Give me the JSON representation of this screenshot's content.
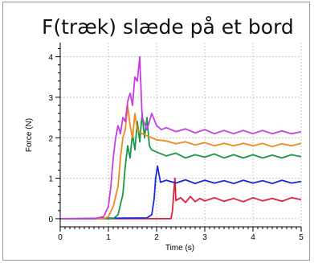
{
  "chart_data": {
    "type": "line",
    "title": "F(træk) slæde på et bord",
    "xlabel": "Time (s)",
    "ylabel": "Force (N)",
    "xlim": [
      0,
      5
    ],
    "ylim": [
      -0.2,
      4.35
    ],
    "x_ticks": [
      0,
      1,
      2,
      3,
      4,
      5
    ],
    "y_ticks": [
      0,
      1,
      2,
      3,
      4
    ],
    "grid": true,
    "series": [
      {
        "color": "#e0203a",
        "points": [
          [
            0,
            0.0
          ],
          [
            2.3,
            0.0
          ],
          [
            2.33,
            0.2
          ],
          [
            2.36,
            0.7
          ],
          [
            2.38,
            1.0
          ],
          [
            2.4,
            0.45
          ],
          [
            2.5,
            0.52
          ],
          [
            2.6,
            0.4
          ],
          [
            2.7,
            0.55
          ],
          [
            2.8,
            0.42
          ],
          [
            2.9,
            0.5
          ],
          [
            3.0,
            0.44
          ],
          [
            3.2,
            0.52
          ],
          [
            3.4,
            0.43
          ],
          [
            3.6,
            0.5
          ],
          [
            3.8,
            0.42
          ],
          [
            4.0,
            0.52
          ],
          [
            4.2,
            0.44
          ],
          [
            4.4,
            0.5
          ],
          [
            4.6,
            0.43
          ],
          [
            4.8,
            0.52
          ],
          [
            5.0,
            0.47
          ]
        ]
      },
      {
        "color": "#1a2bd8",
        "points": [
          [
            0,
            0.0
          ],
          [
            1.8,
            0.02
          ],
          [
            1.9,
            0.1
          ],
          [
            1.95,
            0.5
          ],
          [
            1.98,
            1.0
          ],
          [
            2.02,
            1.3
          ],
          [
            2.08,
            0.9
          ],
          [
            2.2,
            0.95
          ],
          [
            2.4,
            0.88
          ],
          [
            2.6,
            0.96
          ],
          [
            2.8,
            0.87
          ],
          [
            3.0,
            0.95
          ],
          [
            3.2,
            0.88
          ],
          [
            3.4,
            0.94
          ],
          [
            3.6,
            0.87
          ],
          [
            3.8,
            0.95
          ],
          [
            4.0,
            0.88
          ],
          [
            4.2,
            0.94
          ],
          [
            4.4,
            0.87
          ],
          [
            4.6,
            0.95
          ],
          [
            4.8,
            0.88
          ],
          [
            5.0,
            0.92
          ]
        ]
      },
      {
        "color": "#1a9648",
        "points": [
          [
            0,
            0.0
          ],
          [
            1.1,
            0.0
          ],
          [
            1.2,
            0.1
          ],
          [
            1.3,
            0.6
          ],
          [
            1.35,
            1.3
          ],
          [
            1.4,
            1.8
          ],
          [
            1.45,
            1.5
          ],
          [
            1.5,
            2.1
          ],
          [
            1.55,
            1.7
          ],
          [
            1.6,
            2.4
          ],
          [
            1.65,
            1.9
          ],
          [
            1.7,
            2.6
          ],
          [
            1.75,
            2.0
          ],
          [
            1.8,
            2.5
          ],
          [
            1.85,
            1.8
          ],
          [
            1.9,
            1.7
          ],
          [
            2.0,
            1.65
          ],
          [
            2.2,
            1.55
          ],
          [
            2.4,
            1.62
          ],
          [
            2.6,
            1.5
          ],
          [
            2.8,
            1.58
          ],
          [
            3.0,
            1.52
          ],
          [
            3.2,
            1.6
          ],
          [
            3.4,
            1.5
          ],
          [
            3.6,
            1.58
          ],
          [
            3.8,
            1.5
          ],
          [
            4.0,
            1.58
          ],
          [
            4.2,
            1.5
          ],
          [
            4.4,
            1.57
          ],
          [
            4.6,
            1.5
          ],
          [
            4.8,
            1.58
          ],
          [
            5.0,
            1.53
          ]
        ]
      },
      {
        "color": "#f08a1c",
        "points": [
          [
            0,
            0.0
          ],
          [
            0.9,
            0.0
          ],
          [
            1.0,
            0.05
          ],
          [
            1.1,
            0.3
          ],
          [
            1.2,
            0.8
          ],
          [
            1.25,
            1.5
          ],
          [
            1.3,
            2.0
          ],
          [
            1.35,
            2.2
          ],
          [
            1.4,
            2.8
          ],
          [
            1.45,
            2.3
          ],
          [
            1.5,
            2.0
          ],
          [
            1.55,
            2.6
          ],
          [
            1.6,
            2.2
          ],
          [
            1.7,
            2.1
          ],
          [
            1.8,
            2.05
          ],
          [
            2.0,
            1.95
          ],
          [
            2.2,
            1.92
          ],
          [
            2.4,
            1.85
          ],
          [
            2.6,
            1.9
          ],
          [
            2.8,
            1.82
          ],
          [
            3.0,
            1.88
          ],
          [
            3.2,
            1.8
          ],
          [
            3.4,
            1.86
          ],
          [
            3.6,
            1.8
          ],
          [
            3.8,
            1.86
          ],
          [
            4.0,
            1.8
          ],
          [
            4.2,
            1.86
          ],
          [
            4.4,
            1.78
          ],
          [
            4.6,
            1.85
          ],
          [
            4.8,
            1.8
          ],
          [
            5.0,
            1.86
          ]
        ]
      },
      {
        "color": "#c83ce8",
        "points": [
          [
            0,
            0.0
          ],
          [
            0.7,
            0.0
          ],
          [
            0.9,
            0.05
          ],
          [
            1.0,
            0.3
          ],
          [
            1.05,
            0.8
          ],
          [
            1.1,
            1.5
          ],
          [
            1.15,
            2.0
          ],
          [
            1.2,
            2.3
          ],
          [
            1.25,
            2.1
          ],
          [
            1.3,
            2.5
          ],
          [
            1.35,
            2.4
          ],
          [
            1.4,
            2.9
          ],
          [
            1.45,
            3.1
          ],
          [
            1.5,
            2.8
          ],
          [
            1.55,
            3.5
          ],
          [
            1.6,
            3.4
          ],
          [
            1.65,
            4.0
          ],
          [
            1.7,
            2.5
          ],
          [
            1.8,
            2.2
          ],
          [
            1.9,
            2.6
          ],
          [
            2.0,
            2.3
          ],
          [
            2.1,
            2.2
          ],
          [
            2.2,
            2.25
          ],
          [
            2.4,
            2.15
          ],
          [
            2.6,
            2.22
          ],
          [
            2.8,
            2.12
          ],
          [
            3.0,
            2.2
          ],
          [
            3.2,
            2.1
          ],
          [
            3.4,
            2.18
          ],
          [
            3.6,
            2.1
          ],
          [
            3.8,
            2.18
          ],
          [
            4.0,
            2.1
          ],
          [
            4.2,
            2.18
          ],
          [
            4.4,
            2.1
          ],
          [
            4.6,
            2.17
          ],
          [
            4.8,
            2.1
          ],
          [
            5.0,
            2.15
          ]
        ]
      }
    ]
  }
}
